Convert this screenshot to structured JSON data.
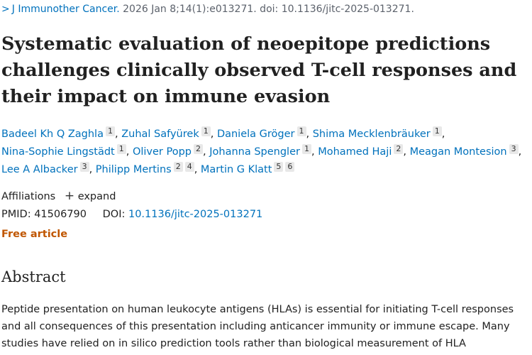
{
  "citation": {
    "chevron": ">",
    "journal": "J Immunother Cancer.",
    "details": "2026 Jan 8;14(1):e013271. doi: 10.1136/jitc-2025-013271."
  },
  "title": "Systematic evaluation of neoepitope predictions challenges clinically observed T-cell responses and their impact on immune evasion",
  "authors": [
    {
      "name": "Badeel Kh Q Zaghla",
      "affils": [
        "1"
      ]
    },
    {
      "name": "Zuhal Safyürek",
      "affils": [
        "1"
      ]
    },
    {
      "name": "Daniela Gröger",
      "affils": [
        "1"
      ]
    },
    {
      "name": "Shima Mecklenbräuker",
      "affils": [
        "1"
      ]
    },
    {
      "name": "Nina-Sophie Lingstädt",
      "affils": [
        "1"
      ]
    },
    {
      "name": "Oliver Popp",
      "affils": [
        "2"
      ]
    },
    {
      "name": "Johanna Spengler",
      "affils": [
        "1"
      ]
    },
    {
      "name": "Mohamed Haji",
      "affils": [
        "2"
      ]
    },
    {
      "name": "Meagan Montesion",
      "affils": [
        "3"
      ]
    },
    {
      "name": "Lee A Albacker",
      "affils": [
        "3"
      ]
    },
    {
      "name": "Philipp Mertins",
      "affils": [
        "2",
        "4"
      ]
    },
    {
      "name": "Martin G Klatt",
      "affils": [
        "5",
        "6"
      ]
    }
  ],
  "affiliations": {
    "label": "Affiliations",
    "expand_icon": "+",
    "expand_label": "expand"
  },
  "ids": {
    "pmid_label": "PMID:",
    "pmid": "41506790",
    "doi_label": "DOI:",
    "doi": "10.1136/jitc-2025-013271"
  },
  "free_article": "Free article",
  "abstract": {
    "heading": "Abstract",
    "text": "Peptide presentation on human leukocyte antigens (HLAs) is essential for initiating T-cell responses and all consequences of this presentation including anticancer immunity or immune escape. Many studies have relied on in silico prediction tools rather than biological measurement of HLA"
  }
}
